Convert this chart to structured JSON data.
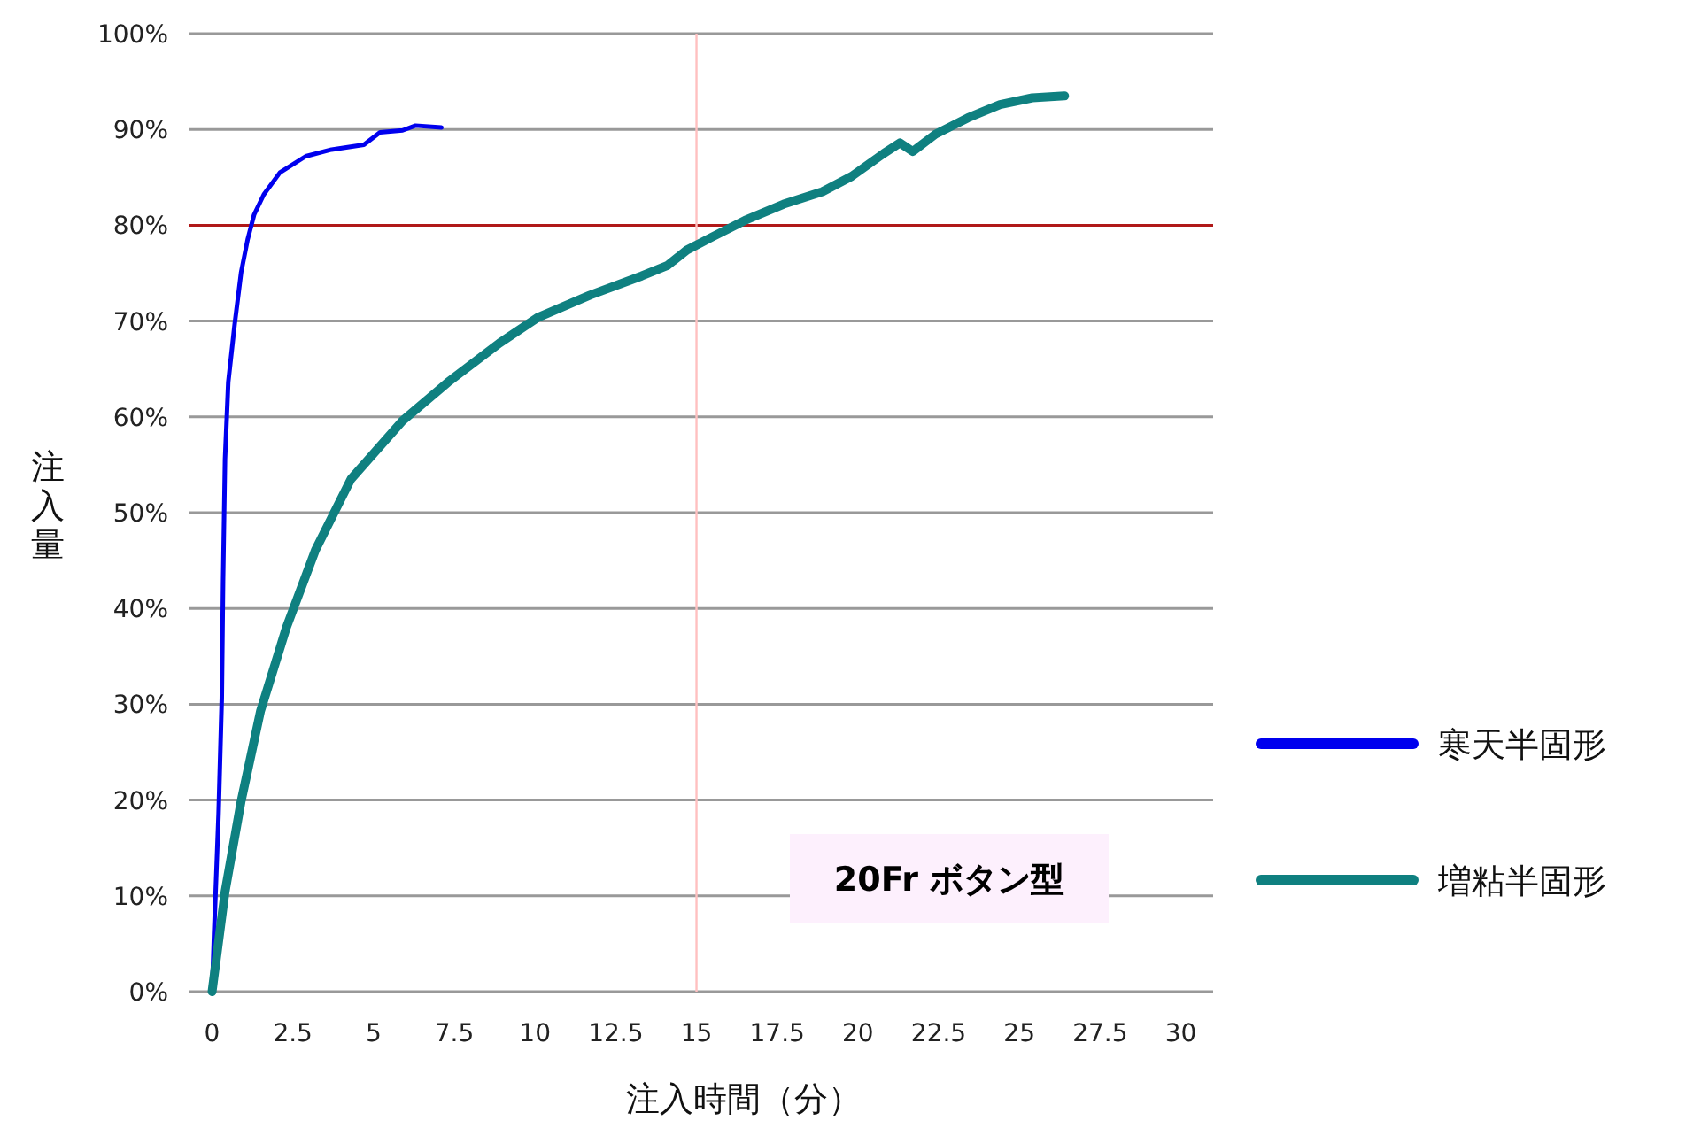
{
  "chart_data": {
    "type": "line",
    "xlabel": "注入時間（分）",
    "ylabel": "注入量",
    "xlim": [
      -0.7,
      31
    ],
    "ylim": [
      0,
      100
    ],
    "xticks": [
      0,
      2.5,
      5,
      7.5,
      10,
      12.5,
      15,
      17.5,
      20,
      22.5,
      25,
      27.5,
      30
    ],
    "yticks": [
      {
        "value": 0,
        "label": "0%"
      },
      {
        "value": 10,
        "label": "10%"
      },
      {
        "value": 20,
        "label": "20%"
      },
      {
        "value": 30,
        "label": "30%"
      },
      {
        "value": 40,
        "label": "40%"
      },
      {
        "value": 50,
        "label": "50%"
      },
      {
        "value": 60,
        "label": "60%"
      },
      {
        "value": 70,
        "label": "70%"
      },
      {
        "value": 80,
        "label": "80%"
      },
      {
        "value": 90,
        "label": "90%"
      },
      {
        "value": 100,
        "label": "100%"
      }
    ],
    "grid": "y",
    "legend": "right",
    "marker": "none",
    "line_style": "solid",
    "ref_lines": [
      {
        "axis": "y",
        "value": 80,
        "color": "#b01818"
      },
      {
        "axis": "x",
        "value": 15,
        "color": "#ffc0c0"
      }
    ],
    "annotations": [
      "20Fr ボタン型"
    ],
    "series": [
      {
        "name": "寒天半固形",
        "color": "#0000ee",
        "x": [
          0,
          0.06,
          0.2,
          0.3,
          0.34,
          0.4,
          0.5,
          0.7,
          0.9,
          1.1,
          1.3,
          1.6,
          2.1,
          2.9,
          3.7,
          4.7,
          5.2,
          5.9,
          6.3,
          7.1
        ],
        "values": [
          0,
          6,
          18.5,
          30.6,
          42.8,
          55.6,
          63.6,
          69.7,
          75.1,
          78.5,
          81.1,
          83.2,
          85.5,
          87.2,
          87.9,
          88.4,
          89.7,
          89.9,
          90.4,
          90.2
        ]
      },
      {
        "name": "増粘半固形",
        "color": "#0f8080",
        "x": [
          0,
          0.4,
          0.9,
          1.5,
          2.3,
          3.2,
          4.3,
          5.9,
          7.3,
          8.9,
          10.1,
          11.7,
          13.3,
          14.1,
          14.7,
          15.5,
          16.5,
          17.7,
          18.9,
          19.8,
          20.8,
          21.3,
          21.7,
          22.4,
          23.4,
          24.4,
          25.4,
          26.4
        ],
        "values": [
          0,
          10.4,
          19.9,
          29.3,
          38,
          46.1,
          53.5,
          59.6,
          63.6,
          67.7,
          70.4,
          72.7,
          74.7,
          75.8,
          77.4,
          78.8,
          80.5,
          82.2,
          83.5,
          85.1,
          87.5,
          88.6,
          87.7,
          89.5,
          91.2,
          92.6,
          93.3,
          93.5
        ]
      }
    ]
  }
}
